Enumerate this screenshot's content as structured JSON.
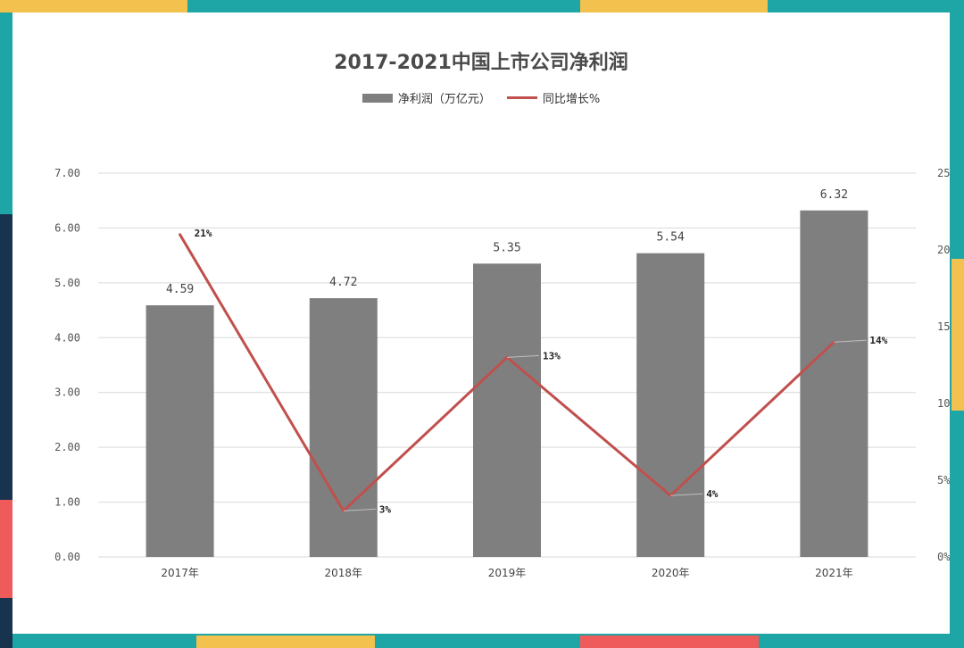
{
  "chart_data": {
    "type": "bar",
    "title": "2017-2021中国上市公司净利润",
    "categories": [
      "2017年",
      "2018年",
      "2019年",
      "2020年",
      "2021年"
    ],
    "series": [
      {
        "name": "净利润（万亿元）",
        "type": "bar",
        "axis": "left",
        "values": [
          4.59,
          4.72,
          5.35,
          5.54,
          6.32
        ],
        "labels": [
          "4.59",
          "4.72",
          "5.35",
          "5.54",
          "6.32"
        ],
        "color": "#7f7f7f"
      },
      {
        "name": "同比增长%",
        "type": "line",
        "axis": "right",
        "values": [
          21,
          3,
          13,
          4,
          14
        ],
        "labels": [
          "21%",
          "3%",
          "13%",
          "4%",
          "14%"
        ],
        "color": "#c0504d"
      }
    ],
    "ylim": [
      0,
      7
    ],
    "y_ticks": [
      "0.00",
      "1.00",
      "2.00",
      "3.00",
      "4.00",
      "5.00",
      "6.00",
      "7.00"
    ],
    "y2lim": [
      0,
      25
    ],
    "y2_ticks": [
      "0%",
      "5%",
      "10%",
      "15%",
      "20%",
      "25%"
    ],
    "grid": true,
    "legend_position": "top"
  }
}
